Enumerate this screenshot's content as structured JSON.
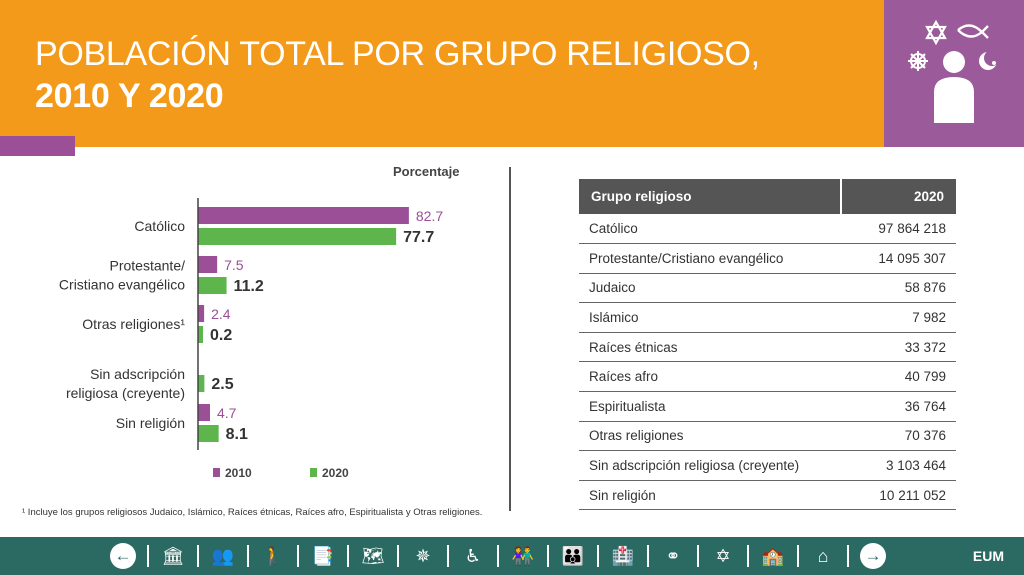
{
  "header": {
    "title_line1": "POBLACIÓN TOTAL POR GRUPO RELIGIOSO,",
    "title_line2": "2010 Y 2020"
  },
  "colors": {
    "orange": "#F49A1A",
    "purple": "#9B4F96",
    "green": "#5DB54B",
    "footer": "#2B6A62",
    "table_header": "#555555"
  },
  "chart_data": {
    "type": "bar",
    "orientation": "horizontal",
    "unit_label": "Porcentaje",
    "categories": [
      [
        "Católico"
      ],
      [
        "Protestante/",
        "Cristiano evangélico"
      ],
      [
        "Otras religiones¹"
      ],
      [
        "Sin adscripción",
        "religiosa (creyente)"
      ],
      [
        "Sin religión"
      ]
    ],
    "series": [
      {
        "name": "2010",
        "color": "#9B4F96",
        "values": [
          82.7,
          7.5,
          2.4,
          null,
          4.7
        ]
      },
      {
        "name": "2020",
        "color": "#5DB54B",
        "values": [
          77.7,
          11.2,
          0.2,
          2.5,
          8.1
        ]
      }
    ],
    "legend_position": "bottom"
  },
  "footnote": "¹ Incluye los grupos religiosos Judaico, Islámico, Raíces étnicas, Raíces afro, Espiritualista y Otras religiones.",
  "table": {
    "headers": [
      "Grupo religioso",
      "2020"
    ],
    "rows": [
      [
        "Católico",
        "97 864 218"
      ],
      [
        "Protestante/Cristiano evangélico",
        "14 095 307"
      ],
      [
        "Judaico",
        "58 876"
      ],
      [
        "Islámico",
        "7 982"
      ],
      [
        "Raíces étnicas",
        "33 372"
      ],
      [
        "Raíces afro",
        "40 799"
      ],
      [
        "Espiritualista",
        "36 764"
      ],
      [
        "Otras religiones",
        "70 376"
      ],
      [
        "Sin adscripción religiosa (creyente)",
        "3 103 464"
      ],
      [
        "Sin religión",
        "10 211 052"
      ]
    ]
  },
  "footer": {
    "brand": "EUM",
    "nav_icons": [
      "prev-arrow-icon",
      "building-icon",
      "population-icon",
      "person-icon",
      "documents-icon",
      "map-icon",
      "compass-icon",
      "wheelchair-icon",
      "couple-icon",
      "family-icon",
      "hospital-icon",
      "rings-icon",
      "religion-icon",
      "school-icon",
      "home-icon",
      "next-arrow-icon"
    ]
  }
}
